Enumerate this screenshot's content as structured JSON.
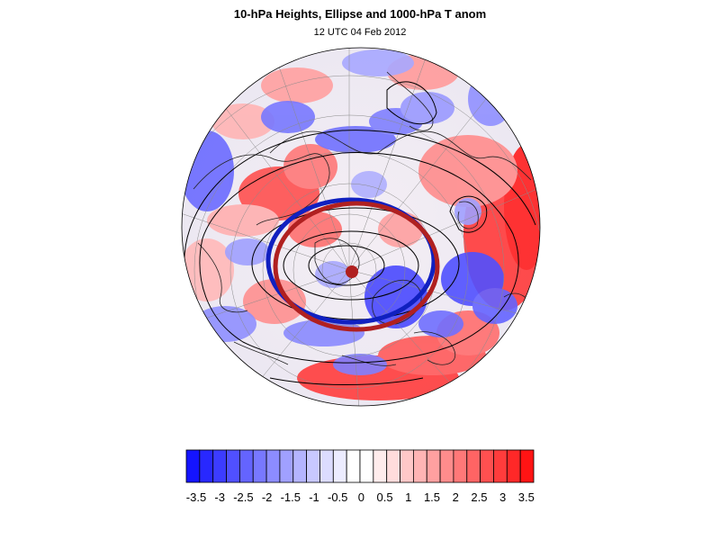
{
  "header": {
    "title": "10-hPa Heights, Ellipse and 1000-hPa T anom",
    "subtitle": "12 UTC 04 Feb 2012"
  },
  "colorbar": {
    "labels": [
      "-3.5",
      "-3",
      "-2.5",
      "-2",
      "-1.5",
      "-1",
      "-0.5",
      "0",
      "0.5",
      "1",
      "1.5",
      "2",
      "2.5",
      "3",
      "3.5"
    ],
    "colors": [
      "#1414ff",
      "#2828ff",
      "#3c3cff",
      "#5050ff",
      "#6464ff",
      "#7878ff",
      "#8c8cff",
      "#a0a0ff",
      "#b4b4ff",
      "#c8c8ff",
      "#dcdcff",
      "#ececff",
      "#ffffff",
      "#ffffff",
      "#ffecec",
      "#ffdcdc",
      "#ffc8c8",
      "#ffb4b4",
      "#ffa0a0",
      "#ff8c8c",
      "#ff7878",
      "#ff6464",
      "#ff5050",
      "#ff3c3c",
      "#ff2828",
      "#ff1414"
    ]
  },
  "map": {
    "projection": "polar-stereographic-north",
    "ellipse_colors": {
      "blue": "#1020c0",
      "red": "#b02020"
    },
    "anomaly_warm": "#ff5a5a",
    "anomaly_cold": "#5a5aff"
  }
}
